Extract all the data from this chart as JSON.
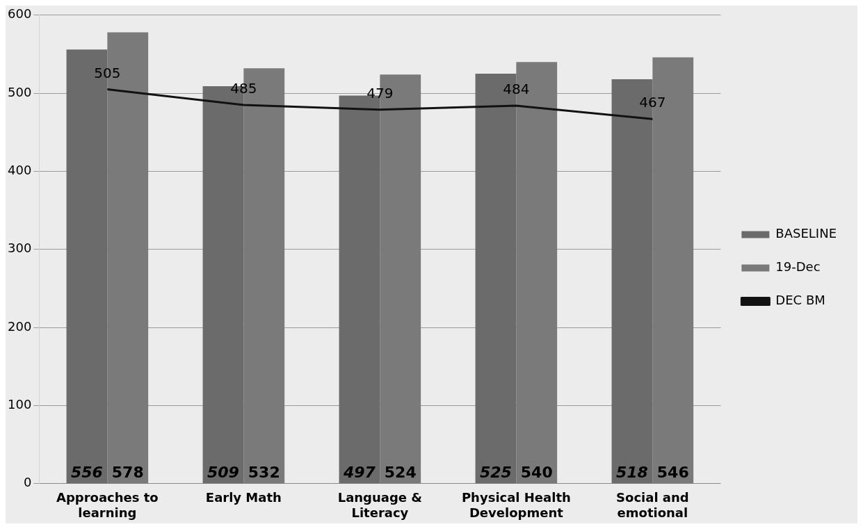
{
  "chart_data": {
    "type": "bar",
    "categories": [
      "Approaches to learning",
      "Early Math",
      "Language & Literacy",
      "Physical Health Development",
      "Social and emotional"
    ],
    "series": [
      {
        "name": "BASELINE",
        "color": "#6b6b6b",
        "values": [
          556,
          509,
          497,
          525,
          518
        ]
      },
      {
        "name": "19-Dec",
        "color": "#7a7a7a",
        "values": [
          578,
          532,
          524,
          540,
          546
        ]
      },
      {
        "name": "DEC BM",
        "type": "line",
        "color": "#111111",
        "values": [
          505,
          485,
          479,
          484,
          467
        ]
      }
    ],
    "ylim": [
      0,
      600
    ],
    "yticks": [
      0,
      100,
      200,
      300,
      400,
      500,
      600
    ],
    "grid": "y",
    "legend": "right",
    "data_labels": true,
    "marker": "none"
  }
}
